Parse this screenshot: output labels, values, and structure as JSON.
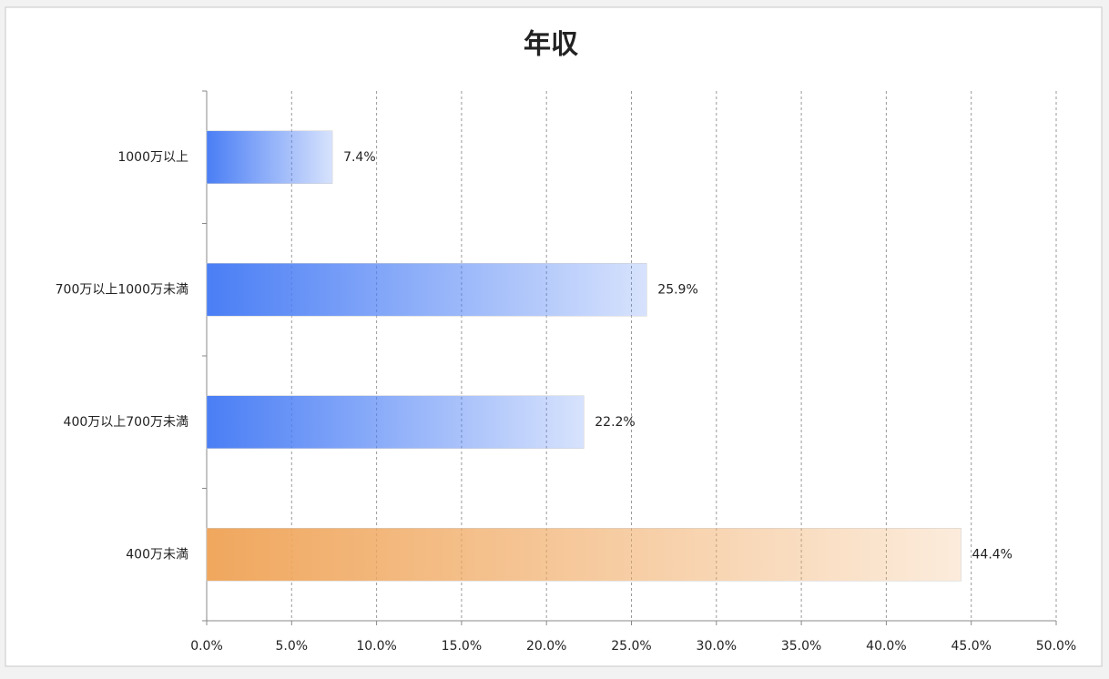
{
  "chart_data": {
    "type": "hbar",
    "title": "年収",
    "categories": [
      "1000万以上",
      "700万以上1000万未満",
      "400万以上700万未満",
      "400万未満"
    ],
    "values": [
      7.4,
      25.9,
      22.2,
      44.4
    ],
    "value_labels": [
      "7.4%",
      "25.9%",
      "22.2%",
      "44.4%"
    ],
    "colors": [
      "#4a7ef5",
      "#4a7ef5",
      "#4a7ef5",
      "#f0a75e"
    ],
    "xlim": [
      0,
      50
    ],
    "xticks": [
      {
        "value": 0,
        "label": "0.0%"
      },
      {
        "value": 5,
        "label": "5.0%"
      },
      {
        "value": 10,
        "label": "10.0%"
      },
      {
        "value": 15,
        "label": "15.0%"
      },
      {
        "value": 20,
        "label": "20.0%"
      },
      {
        "value": 25,
        "label": "25.0%"
      },
      {
        "value": 30,
        "label": "30.0%"
      },
      {
        "value": 35,
        "label": "35.0%"
      },
      {
        "value": 40,
        "label": "40.0%"
      },
      {
        "value": 45,
        "label": "45.0%"
      },
      {
        "value": 50,
        "label": "50.0%"
      }
    ],
    "grid": true
  }
}
